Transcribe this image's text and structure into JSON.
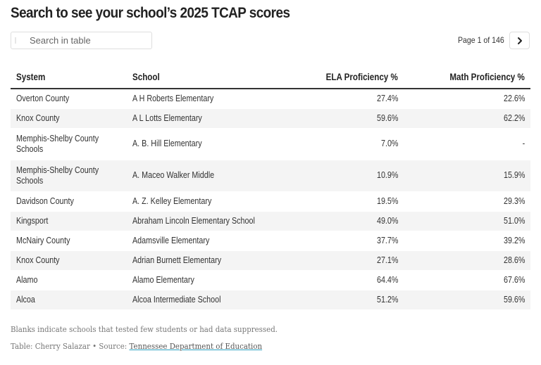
{
  "title": "Search to see your school’s 2025 TCAP scores",
  "search": {
    "placeholder": "Search in table",
    "icon": "search-icon"
  },
  "pagination": {
    "label": "Page 1 of 146",
    "next_icon": "chevron-right-icon"
  },
  "table": {
    "headers": [
      "System",
      "School",
      "ELA Proficiency %",
      "Math Proficiency %"
    ],
    "rows": [
      {
        "system": "Overton County",
        "school": "A H Roberts Elementary",
        "ela": "27.4%",
        "math": "22.6%"
      },
      {
        "system": "Knox County",
        "school": "A L Lotts Elementary",
        "ela": "59.6%",
        "math": "62.2%"
      },
      {
        "system": "Memphis-Shelby County Schools",
        "school": "A. B. Hill Elementary",
        "ela": "7.0%",
        "math": "-"
      },
      {
        "system": "Memphis-Shelby County Schools",
        "school": "A. Maceo Walker Middle",
        "ela": "10.9%",
        "math": "15.9%"
      },
      {
        "system": "Davidson County",
        "school": "A. Z. Kelley Elementary",
        "ela": "19.5%",
        "math": "29.3%"
      },
      {
        "system": "Kingsport",
        "school": "Abraham Lincoln Elementary School",
        "ela": "49.0%",
        "math": "51.0%"
      },
      {
        "system": "McNairy County",
        "school": "Adamsville Elementary",
        "ela": "37.7%",
        "math": "39.2%"
      },
      {
        "system": "Knox County",
        "school": "Adrian Burnett Elementary",
        "ela": "27.1%",
        "math": "28.6%"
      },
      {
        "system": "Alamo",
        "school": "Alamo Elementary",
        "ela": "64.4%",
        "math": "67.6%"
      },
      {
        "system": "Alcoa",
        "school": "Alcoa Intermediate School",
        "ela": "51.2%",
        "math": "59.6%"
      }
    ]
  },
  "notes": {
    "blanks": "Blanks indicate schools that tested few students or had data suppressed.",
    "credit": "Table: Cherry Salazar • Source: ",
    "source_link": "Tennessee Department of Education"
  }
}
